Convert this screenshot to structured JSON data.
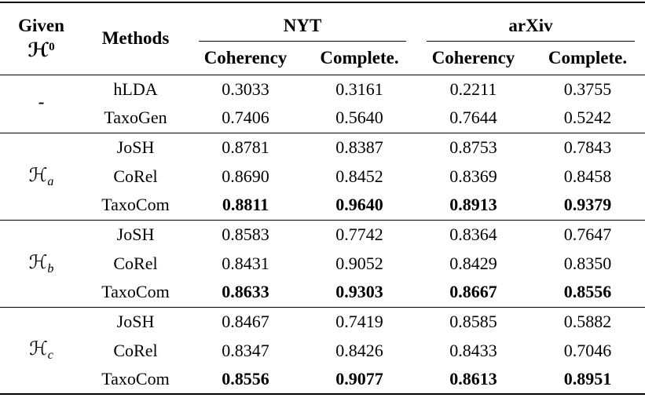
{
  "header": {
    "given_line1": "Given",
    "given_symbol": "ℋ",
    "given_sup": "0",
    "methods": "Methods",
    "dataset1": "NYT",
    "dataset2": "arXiv",
    "metric_coherency": "Coherency",
    "metric_complete": "Complete."
  },
  "groups": [
    {
      "label_base": "-",
      "label_sub": "",
      "rows": [
        {
          "method": "hLDA",
          "values": [
            "0.3033",
            "0.3161",
            "0.2211",
            "0.3755"
          ]
        },
        {
          "method": "TaxoGen",
          "values": [
            "0.7406",
            "0.5640",
            "0.7644",
            "0.5242"
          ]
        }
      ]
    },
    {
      "label_base": "ℋ",
      "label_sub": "a",
      "rows": [
        {
          "method": "JoSH",
          "values": [
            "0.8781",
            "0.8387",
            "0.8753",
            "0.7843"
          ]
        },
        {
          "method": "CoRel",
          "values": [
            "0.8690",
            "0.8452",
            "0.8369",
            "0.8458"
          ]
        },
        {
          "method": "TaxoCom",
          "values": [
            "0.8811",
            "0.9640",
            "0.8913",
            "0.9379"
          ],
          "best": true
        }
      ]
    },
    {
      "label_base": "ℋ",
      "label_sub": "b",
      "rows": [
        {
          "method": "JoSH",
          "values": [
            "0.8583",
            "0.7742",
            "0.8364",
            "0.7647"
          ]
        },
        {
          "method": "CoRel",
          "values": [
            "0.8431",
            "0.9052",
            "0.8429",
            "0.8350"
          ]
        },
        {
          "method": "TaxoCom",
          "values": [
            "0.8633",
            "0.9303",
            "0.8667",
            "0.8556"
          ],
          "best": true
        }
      ]
    },
    {
      "label_base": "ℋ",
      "label_sub": "c",
      "rows": [
        {
          "method": "JoSH",
          "values": [
            "0.8467",
            "0.7419",
            "0.8585",
            "0.5882"
          ]
        },
        {
          "method": "CoRel",
          "values": [
            "0.8347",
            "0.8426",
            "0.8433",
            "0.7046"
          ]
        },
        {
          "method": "TaxoCom",
          "values": [
            "0.8556",
            "0.9077",
            "0.8613",
            "0.8951"
          ],
          "best": true
        }
      ]
    }
  ],
  "colors": {
    "background": "#ffffff",
    "text": "#000000",
    "rule": "#000000"
  }
}
